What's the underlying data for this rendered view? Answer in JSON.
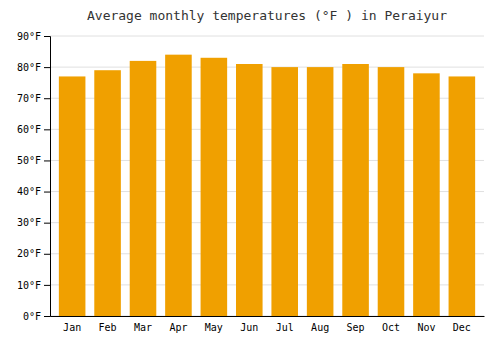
{
  "chart_data": {
    "type": "bar",
    "title": "Average monthly temperatures (°F ) in Peraiyur",
    "categories": [
      "Jan",
      "Feb",
      "Mar",
      "Apr",
      "May",
      "Jun",
      "Jul",
      "Aug",
      "Sep",
      "Oct",
      "Nov",
      "Dec"
    ],
    "values": [
      77,
      79,
      82,
      84,
      83,
      81,
      80,
      80,
      81,
      80,
      78,
      77
    ],
    "color": "#F0A000",
    "ylim": [
      0,
      90
    ],
    "yticks": [
      {
        "value": 0,
        "label": "0°F"
      },
      {
        "value": 10,
        "label": "10°F"
      },
      {
        "value": 20,
        "label": "20°F"
      },
      {
        "value": 30,
        "label": "30°F"
      },
      {
        "value": 40,
        "label": "40°F"
      },
      {
        "value": 50,
        "label": "50°F"
      },
      {
        "value": 60,
        "label": "60°F"
      },
      {
        "value": 70,
        "label": "70°F"
      },
      {
        "value": 80,
        "label": "80°F"
      },
      {
        "value": 90,
        "label": "90°F"
      }
    ],
    "grid": true
  }
}
